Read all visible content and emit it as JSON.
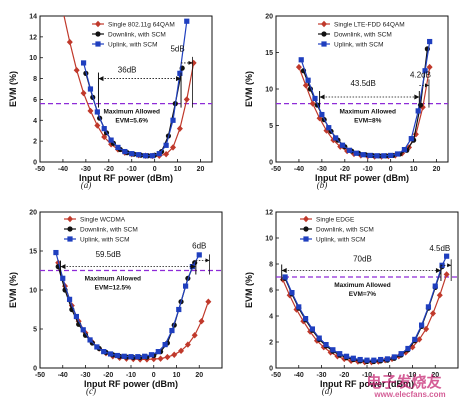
{
  "chart_data": [
    {
      "type": "line",
      "panel_label": "(a)",
      "xlabel": "Input RF power (dBm)",
      "ylabel": "EVM (%)",
      "xlim": [
        -50,
        25
      ],
      "ylim": [
        0,
        14
      ],
      "xticks": [
        -50,
        -40,
        -30,
        -20,
        -10,
        0,
        10,
        20
      ],
      "yticks": [
        0,
        2,
        4,
        6,
        8,
        10,
        12,
        14
      ],
      "legend_position": "top-right",
      "threshold": 5.6,
      "allowed_text": [
        "Maximum Allowed",
        "EVM=5.6%"
      ],
      "annotations": [
        "36dB",
        "5dB"
      ],
      "series": [
        {
          "name": "Single 802.11g 64QAM",
          "color": "#c0392b",
          "marker": "diamond",
          "x": [
            -40,
            -37,
            -34,
            -31,
            -28,
            -25,
            -22,
            -19,
            -16,
            -13,
            -10,
            -7,
            -4,
            -1,
            2,
            5,
            8,
            11,
            14,
            17
          ],
          "y": [
            14.5,
            11.5,
            8.8,
            6.6,
            4.9,
            3.5,
            2.4,
            1.7,
            1.2,
            0.9,
            0.75,
            0.65,
            0.6,
            0.58,
            0.6,
            0.75,
            1.4,
            3.2,
            6.0,
            9.5
          ]
        },
        {
          "name": "Downlink, with SCM",
          "color": "#111111",
          "marker": "circle",
          "x": [
            -30,
            -27,
            -24,
            -21,
            -18,
            -15,
            -12,
            -9,
            -6,
            -3,
            0,
            3,
            6,
            9,
            12
          ],
          "y": [
            8.5,
            6.2,
            4.2,
            2.8,
            1.8,
            1.2,
            0.9,
            0.75,
            0.65,
            0.6,
            0.65,
            1.0,
            2.5,
            5.6,
            9.0
          ]
        },
        {
          "name": "Uplink, with SCM",
          "color": "#1f3fbf",
          "marker": "square",
          "x": [
            -31,
            -28,
            -25,
            -22,
            -19,
            -16,
            -13,
            -10,
            -7,
            -4,
            -1,
            2,
            5,
            8,
            11,
            14
          ],
          "y": [
            9.5,
            7.0,
            4.8,
            3.2,
            2.1,
            1.4,
            1.0,
            0.8,
            0.7,
            0.6,
            0.6,
            0.8,
            1.6,
            4.0,
            8.5,
            13.5
          ]
        }
      ]
    },
    {
      "type": "line",
      "panel_label": "(b)",
      "xlabel": "Input RF power (dBm)",
      "ylabel": "EVM (%)",
      "xlim": [
        -50,
        25
      ],
      "ylim": [
        0,
        20
      ],
      "xticks": [
        -50,
        -40,
        -30,
        -20,
        -10,
        0,
        10,
        20
      ],
      "yticks": [
        0,
        5,
        10,
        15,
        20
      ],
      "legend_position": "top-right",
      "threshold": 8,
      "allowed_text": [
        "Maximum Allowed",
        "EVM=8%"
      ],
      "annotations": [
        "43.5dB",
        "4.2dB"
      ],
      "series": [
        {
          "name": "Single LTE-FDD 64QAM",
          "color": "#c0392b",
          "marker": "diamond",
          "x": [
            -40,
            -37,
            -34,
            -31,
            -28,
            -25,
            -22,
            -19,
            -16,
            -13,
            -10,
            -7,
            -4,
            -1,
            2,
            5,
            8,
            11,
            14,
            17
          ],
          "y": [
            13.0,
            10.5,
            8.0,
            6.0,
            4.3,
            3.0,
            2.1,
            1.5,
            1.1,
            0.9,
            0.8,
            0.75,
            0.75,
            0.8,
            0.9,
            1.2,
            2.0,
            3.8,
            7.5,
            13.0
          ]
        },
        {
          "name": "Downlink, with SCM",
          "color": "#111111",
          "marker": "circle",
          "x": [
            -38,
            -35,
            -32,
            -29,
            -26,
            -23,
            -20,
            -17,
            -14,
            -11,
            -8,
            -5,
            -2,
            1,
            4,
            7,
            10,
            13,
            16
          ],
          "y": [
            12.5,
            10.0,
            7.8,
            5.8,
            4.2,
            3.0,
            2.1,
            1.5,
            1.2,
            1.0,
            0.9,
            0.85,
            0.85,
            0.9,
            1.1,
            1.6,
            3.0,
            7.8,
            15.5
          ]
        },
        {
          "name": "Uplink, with SCM",
          "color": "#1f3fbf",
          "marker": "square",
          "x": [
            -39,
            -36,
            -33,
            -30,
            -27,
            -24,
            -21,
            -18,
            -15,
            -12,
            -9,
            -6,
            -3,
            0,
            3,
            6,
            9,
            12,
            15,
            17
          ],
          "y": [
            14.0,
            11.2,
            8.7,
            6.5,
            4.7,
            3.3,
            2.3,
            1.6,
            1.2,
            1.0,
            0.9,
            0.85,
            0.85,
            0.9,
            1.1,
            1.7,
            3.2,
            7.0,
            12.5,
            16.5
          ]
        }
      ]
    },
    {
      "type": "line",
      "panel_label": "(c)",
      "xlabel": "Input RF power (dBm)",
      "ylabel": "EVM (%)",
      "xlim": [
        -50,
        30
      ],
      "ylim": [
        0,
        20
      ],
      "xticks": [
        -50,
        -40,
        -30,
        -20,
        -10,
        0,
        10,
        20
      ],
      "yticks": [
        0,
        5,
        10,
        15,
        20
      ],
      "legend_position": "top-left",
      "threshold": 12.5,
      "allowed_text": [
        "Maximum Allowed",
        "EVM=12.5%"
      ],
      "annotations": [
        "59.5dB",
        "6dB"
      ],
      "series": [
        {
          "name": "Single WCDMA",
          "color": "#c0392b",
          "marker": "diamond",
          "x": [
            -42,
            -39,
            -36,
            -33,
            -30,
            -27,
            -24,
            -21,
            -18,
            -15,
            -12,
            -9,
            -6,
            -3,
            0,
            3,
            6,
            9,
            12,
            15,
            18,
            21,
            24
          ],
          "y": [
            13.5,
            10.5,
            8.0,
            6.0,
            4.5,
            3.3,
            2.5,
            1.9,
            1.5,
            1.3,
            1.2,
            1.15,
            1.1,
            1.1,
            1.15,
            1.2,
            1.4,
            1.7,
            2.2,
            3.0,
            4.2,
            6.0,
            8.5
          ]
        },
        {
          "name": "Downlink, with SCM",
          "color": "#111111",
          "marker": "circle",
          "x": [
            -42,
            -39,
            -36,
            -33,
            -30,
            -27,
            -24,
            -21,
            -18,
            -15,
            -12,
            -9,
            -6,
            -3,
            0,
            3,
            6,
            9,
            12,
            15,
            18
          ],
          "y": [
            13.0,
            10.0,
            7.5,
            5.6,
            4.2,
            3.2,
            2.5,
            2.0,
            1.7,
            1.5,
            1.4,
            1.35,
            1.35,
            1.4,
            1.6,
            2.1,
            3.2,
            5.5,
            8.5,
            11.5,
            13.5
          ]
        },
        {
          "name": "Uplink, with SCM",
          "color": "#1f3fbf",
          "marker": "square",
          "x": [
            -43,
            -40,
            -37,
            -34,
            -31,
            -28,
            -25,
            -22,
            -19,
            -16,
            -13,
            -10,
            -7,
            -4,
            -1,
            2,
            5,
            8,
            11,
            14,
            17,
            20
          ],
          "y": [
            14.8,
            11.5,
            8.8,
            6.6,
            4.9,
            3.6,
            2.7,
            2.1,
            1.8,
            1.6,
            1.5,
            1.45,
            1.45,
            1.5,
            1.7,
            2.1,
            3.0,
            4.8,
            7.5,
            10.5,
            13.0,
            14.5
          ]
        }
      ]
    },
    {
      "type": "line",
      "panel_label": "(d)",
      "xlabel": "Input RF power (dBm)",
      "ylabel": "EVM (%)",
      "xlim": [
        -50,
        30
      ],
      "ylim": [
        0,
        12
      ],
      "xticks": [
        -50,
        -40,
        -30,
        -20,
        -10,
        0,
        10,
        20
      ],
      "yticks": [
        0,
        2,
        4,
        6,
        8,
        10,
        12
      ],
      "legend_position": "top-left",
      "threshold": 7,
      "allowed_text": [
        "Maximum Allowed",
        "EVM=7%"
      ],
      "annotations": [
        "70dB",
        "4.5dB"
      ],
      "series": [
        {
          "name": "Single EDGE",
          "color": "#c0392b",
          "marker": "diamond",
          "x": [
            -47,
            -44,
            -41,
            -38,
            -35,
            -32,
            -29,
            -26,
            -23,
            -20,
            -17,
            -14,
            -11,
            -8,
            -5,
            -2,
            1,
            4,
            7,
            10,
            13,
            16,
            19,
            22,
            25
          ],
          "y": [
            6.8,
            5.6,
            4.5,
            3.6,
            2.8,
            2.1,
            1.6,
            1.2,
            0.9,
            0.7,
            0.55,
            0.5,
            0.45,
            0.45,
            0.5,
            0.6,
            0.7,
            0.9,
            1.2,
            1.6,
            2.2,
            3.0,
            4.2,
            5.6,
            7.2
          ]
        },
        {
          "name": "Downlink, with SCM",
          "color": "#111111",
          "marker": "circle",
          "x": [
            -46,
            -43,
            -40,
            -37,
            -34,
            -31,
            -28,
            -25,
            -22,
            -19,
            -16,
            -13,
            -10,
            -7,
            -4,
            -1,
            2,
            5,
            8,
            11,
            14,
            17,
            20,
            23
          ],
          "y": [
            6.9,
            5.7,
            4.6,
            3.7,
            2.9,
            2.2,
            1.7,
            1.3,
            1.0,
            0.8,
            0.65,
            0.55,
            0.5,
            0.5,
            0.55,
            0.6,
            0.75,
            1.0,
            1.4,
            2.1,
            3.2,
            4.6,
            6.2,
            7.8
          ]
        },
        {
          "name": "Uplink, with SCM",
          "color": "#1f3fbf",
          "marker": "square",
          "x": [
            -46,
            -43,
            -40,
            -37,
            -34,
            -31,
            -28,
            -25,
            -22,
            -19,
            -16,
            -13,
            -10,
            -7,
            -4,
            -1,
            2,
            5,
            8,
            11,
            14,
            17,
            20,
            23,
            25
          ],
          "y": [
            7.0,
            5.8,
            4.7,
            3.8,
            3.0,
            2.3,
            1.8,
            1.4,
            1.1,
            0.9,
            0.75,
            0.65,
            0.6,
            0.6,
            0.65,
            0.7,
            0.85,
            1.1,
            1.5,
            2.2,
            3.3,
            4.7,
            6.3,
            7.9,
            8.6
          ]
        }
      ]
    }
  ],
  "watermark": {
    "line1": "电子发烧友",
    "line2": "www.elecfans.com",
    "color": "#c21a6b"
  }
}
